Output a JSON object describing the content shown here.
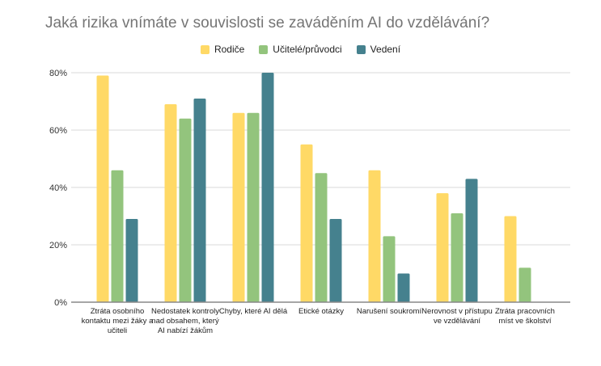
{
  "chart_data": {
    "type": "bar",
    "title": "Jaká rizika vnímáte v souvislosti se zaváděním AI do vzdělávání?",
    "xlabel": "",
    "ylabel": "",
    "ylim": [
      0,
      80
    ],
    "yticks": [
      "0%",
      "20%",
      "40%",
      "60%",
      "80%"
    ],
    "ytick_values": [
      0,
      20,
      40,
      60,
      80
    ],
    "grid": true,
    "legend_position": "top",
    "categories": [
      "Ztráta osobního kontaktu mezi žáky a učiteli",
      "Nedostatek kontroly nad obsahem, který AI nabízí žákům",
      "Chyby, které AI dělá",
      "Etické otázky",
      "Narušení soukromí",
      "Nerovnost v přístupu ve vzdělávání",
      "Ztráta pracovních míst ve školství"
    ],
    "series": [
      {
        "name": "Rodiče",
        "color": "#ffd966",
        "values": [
          79,
          69,
          66,
          55,
          46,
          38,
          30
        ]
      },
      {
        "name": "Učitelé/průvodci",
        "color": "#93c47d",
        "values": [
          46,
          64,
          66,
          45,
          23,
          31,
          12
        ]
      },
      {
        "name": "Vedení",
        "color": "#45818e",
        "values": [
          29,
          71,
          80,
          29,
          10,
          43,
          0
        ]
      }
    ]
  }
}
